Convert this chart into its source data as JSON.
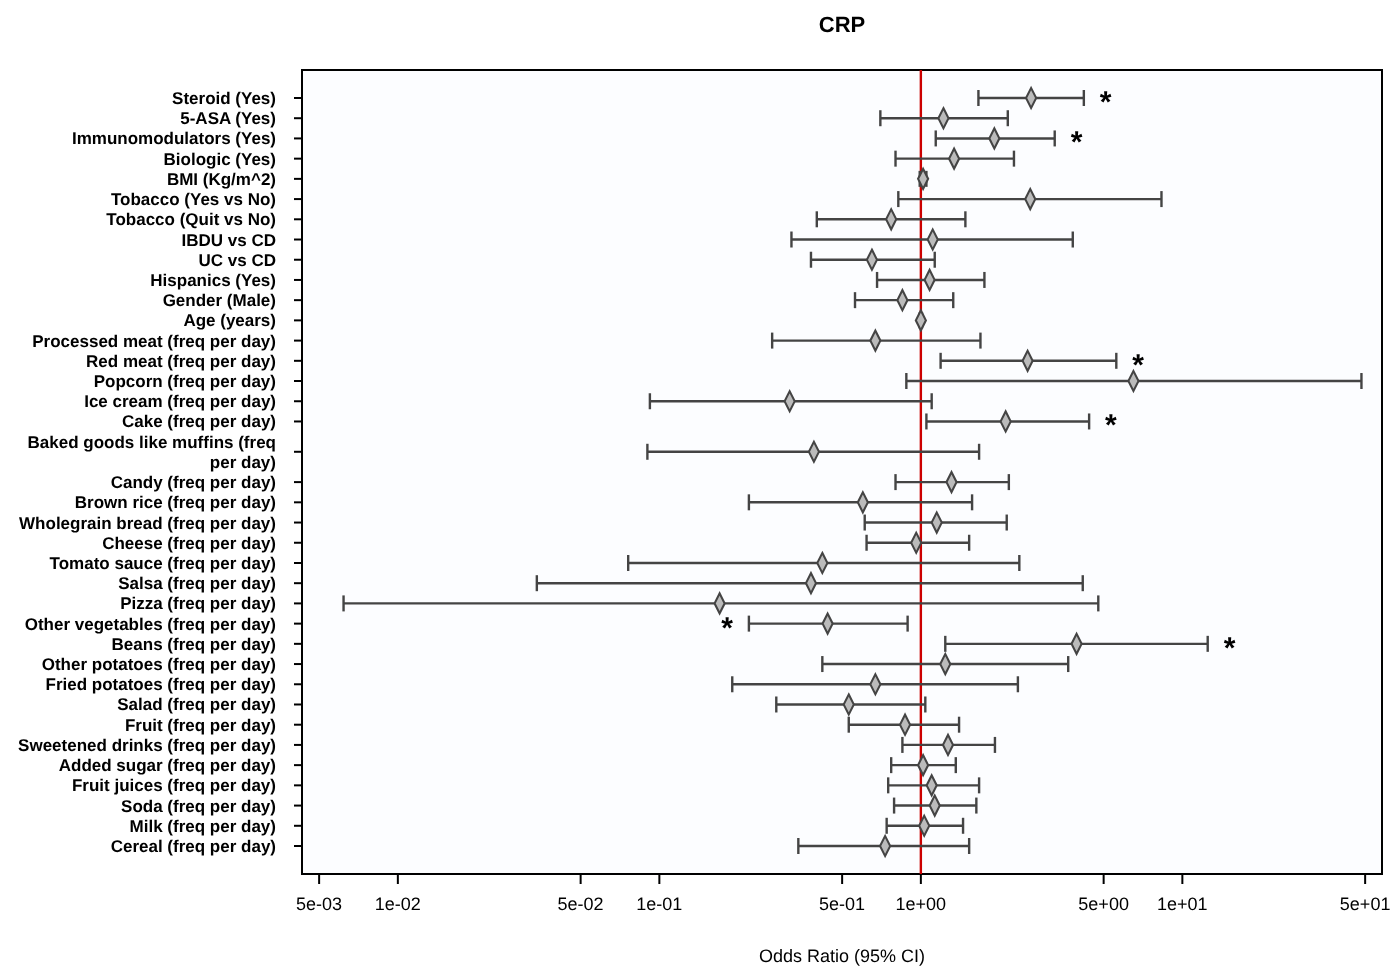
{
  "chart_data": {
    "type": "scatter",
    "title": "CRP",
    "xlabel": "Odds Ratio (95% CI)",
    "orientation": "horizontal",
    "log": "x",
    "grid": false,
    "marker": "diamond",
    "color": "#444444",
    "categories": [
      "Steroid (Yes)",
      "5-ASA (Yes)",
      "Immunomodulators (Yes)",
      "Biologic (Yes)",
      "BMI (Kg/m^2)",
      "Tobacco (Yes vs No)",
      "Tobacco (Quit vs No)",
      "IBDU vs CD",
      "UC vs CD",
      "Hispanics (Yes)",
      "Gender (Male)",
      "Age (years)",
      "Processed meat (freq per day)",
      "Red meat (freq per day)",
      "Popcorn (freq per day)",
      "Ice cream (freq per day)",
      "Cake (freq per day)",
      "Baked goods like muffins (freq\nper day)",
      "Candy (freq per day)",
      "Brown rice (freq per day)",
      "Wholegrain bread (freq per day)",
      "Cheese (freq per day)",
      "Tomato sauce (freq per day)",
      "Salsa (freq per day)",
      "Pizza (freq per day)",
      "Other vegetables (freq per day)",
      "Beans (freq per day)",
      "Other potatoes (freq per day)",
      "Fried potatoes (freq per day)",
      "Salad (freq per day)",
      "Fruit (freq per day)",
      "Sweetened drinks (freq per day)",
      "Added sugar (freq per day)",
      "Fruit juices (freq per day)",
      "Soda (freq per day)",
      "Milk (freq per day)",
      "Cereal (freq per day)"
    ],
    "values": [
      2.64,
      1.22,
      1.91,
      1.34,
      1.02,
      2.62,
      0.77,
      1.11,
      0.65,
      1.08,
      0.85,
      1.0,
      0.67,
      2.56,
      6.5,
      0.315,
      2.11,
      0.39,
      1.31,
      0.6,
      1.15,
      0.96,
      0.42,
      0.38,
      0.17,
      0.44,
      3.94,
      1.24,
      0.67,
      0.53,
      0.87,
      1.27,
      1.02,
      1.1,
      1.13,
      1.03,
      0.73
    ],
    "errors": [
      [
        1.66,
        4.2
      ],
      [
        0.7,
        2.15
      ],
      [
        1.14,
        3.25
      ],
      [
        0.8,
        2.27
      ],
      [
        0.99,
        1.05
      ],
      [
        0.82,
        8.32
      ],
      [
        0.4,
        1.48
      ],
      [
        0.32,
        3.81
      ],
      [
        0.38,
        1.13
      ],
      [
        0.68,
        1.75
      ],
      [
        0.56,
        1.33
      ],
      [
        0.99,
        1.01
      ],
      [
        0.27,
        1.69
      ],
      [
        1.19,
        5.59
      ],
      [
        0.88,
        48.4
      ],
      [
        0.092,
        1.1
      ],
      [
        1.05,
        4.4
      ],
      [
        0.09,
        1.67
      ],
      [
        0.8,
        2.17
      ],
      [
        0.22,
        1.57
      ],
      [
        0.61,
        2.13
      ],
      [
        0.62,
        1.53
      ],
      [
        0.076,
        2.38
      ],
      [
        0.034,
        4.16
      ],
      [
        0.0062,
        4.77
      ],
      [
        0.22,
        0.89
      ],
      [
        1.24,
        12.5
      ],
      [
        0.42,
        3.66
      ],
      [
        0.19,
        2.35
      ],
      [
        0.28,
        1.04
      ],
      [
        0.53,
        1.4
      ],
      [
        0.85,
        1.92
      ],
      [
        0.77,
        1.36
      ],
      [
        0.75,
        1.67
      ],
      [
        0.79,
        1.63
      ],
      [
        0.74,
        1.45
      ],
      [
        0.34,
        1.53
      ]
    ],
    "xlim": [
      0.0043,
      58
    ],
    "xticks": [
      {
        "value": 0.005,
        "label": "5e-03"
      },
      {
        "value": 0.01,
        "label": "1e-02"
      },
      {
        "value": 0.05,
        "label": "5e-02"
      },
      {
        "value": 0.1,
        "label": "1e-01"
      },
      {
        "value": 0.5,
        "label": "5e-01"
      },
      {
        "value": 1,
        "label": "1e+00"
      },
      {
        "value": 5,
        "label": "5e+00"
      },
      {
        "value": 10,
        "label": "1e+01"
      },
      {
        "value": 50,
        "label": "5e+01"
      }
    ],
    "ref_lines": [
      {
        "axis": "x",
        "value": 1,
        "color": "#cc0000"
      }
    ],
    "annotations": [
      {
        "text": "*",
        "x": 4.2,
        "y": "Steroid (Yes)"
      },
      {
        "text": "*",
        "x": 3.25,
        "y": "Immunomodulators (Yes)"
      },
      {
        "text": "*",
        "x": 5.59,
        "y": "Red meat (freq per day)"
      },
      {
        "text": "*",
        "x": 4.4,
        "y": "Cake (freq per day)"
      },
      {
        "text": "*",
        "x": 0.22,
        "y": "Other vegetables (freq per day)"
      },
      {
        "text": "*",
        "x": 12.5,
        "y": "Beans (freq per day)"
      }
    ]
  }
}
